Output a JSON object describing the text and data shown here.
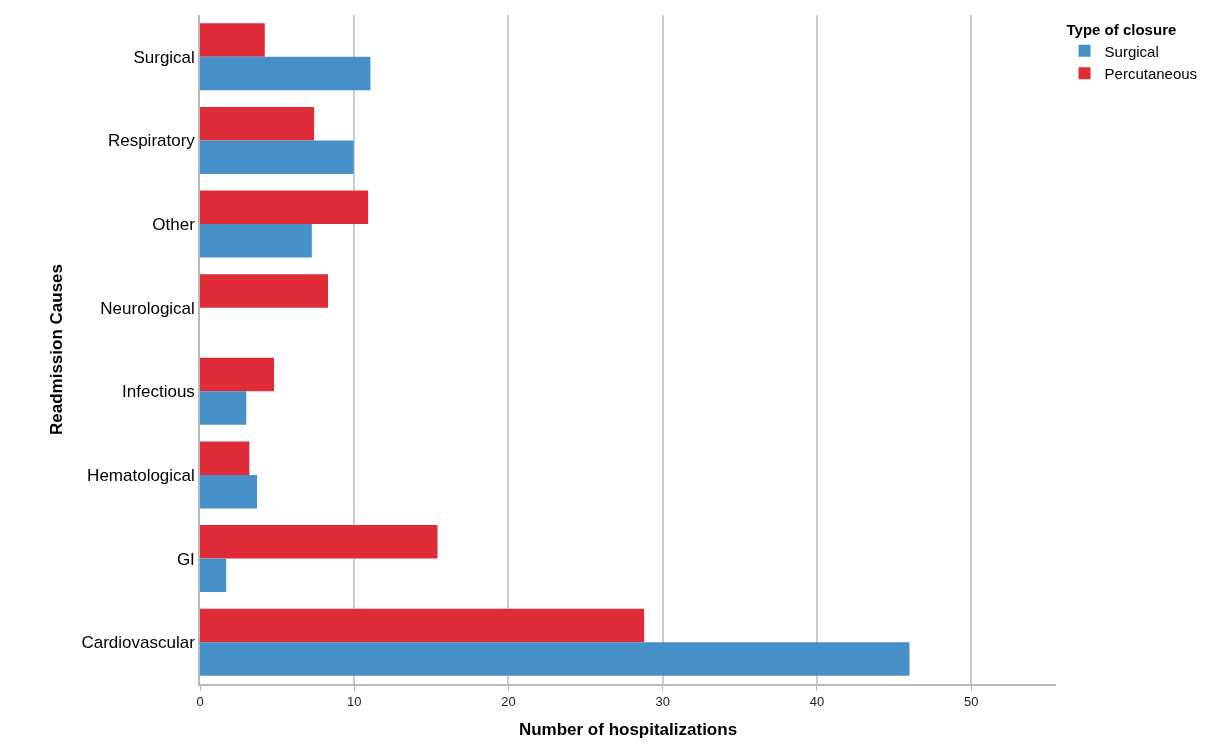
{
  "chart_data": {
    "type": "bar",
    "orientation": "horizontal",
    "xlabel": "Number of hospitalizations",
    "ylabel": "Readmission Causes",
    "legend_title": "Type of closure",
    "categories": [
      "Surgical",
      "Respiratory",
      "Other",
      "Neurological",
      "Infectious",
      "Hematological",
      "GI",
      "Cardiovascular"
    ],
    "series": [
      {
        "name": "Surgical",
        "color": "#4590c9",
        "values": [
          11.05,
          9.96,
          7.25,
          null,
          3.0,
          3.7,
          1.7,
          46.0
        ]
      },
      {
        "name": "Percutaneous",
        "color": "#e02b39",
        "values": [
          4.2,
          7.4,
          10.9,
          8.3,
          4.8,
          3.2,
          15.4,
          28.8
        ]
      }
    ],
    "xlim": [
      0,
      55.5
    ],
    "xticks": [
      0,
      10,
      20,
      30,
      40,
      50
    ],
    "grid": "x",
    "legend": "top right"
  }
}
